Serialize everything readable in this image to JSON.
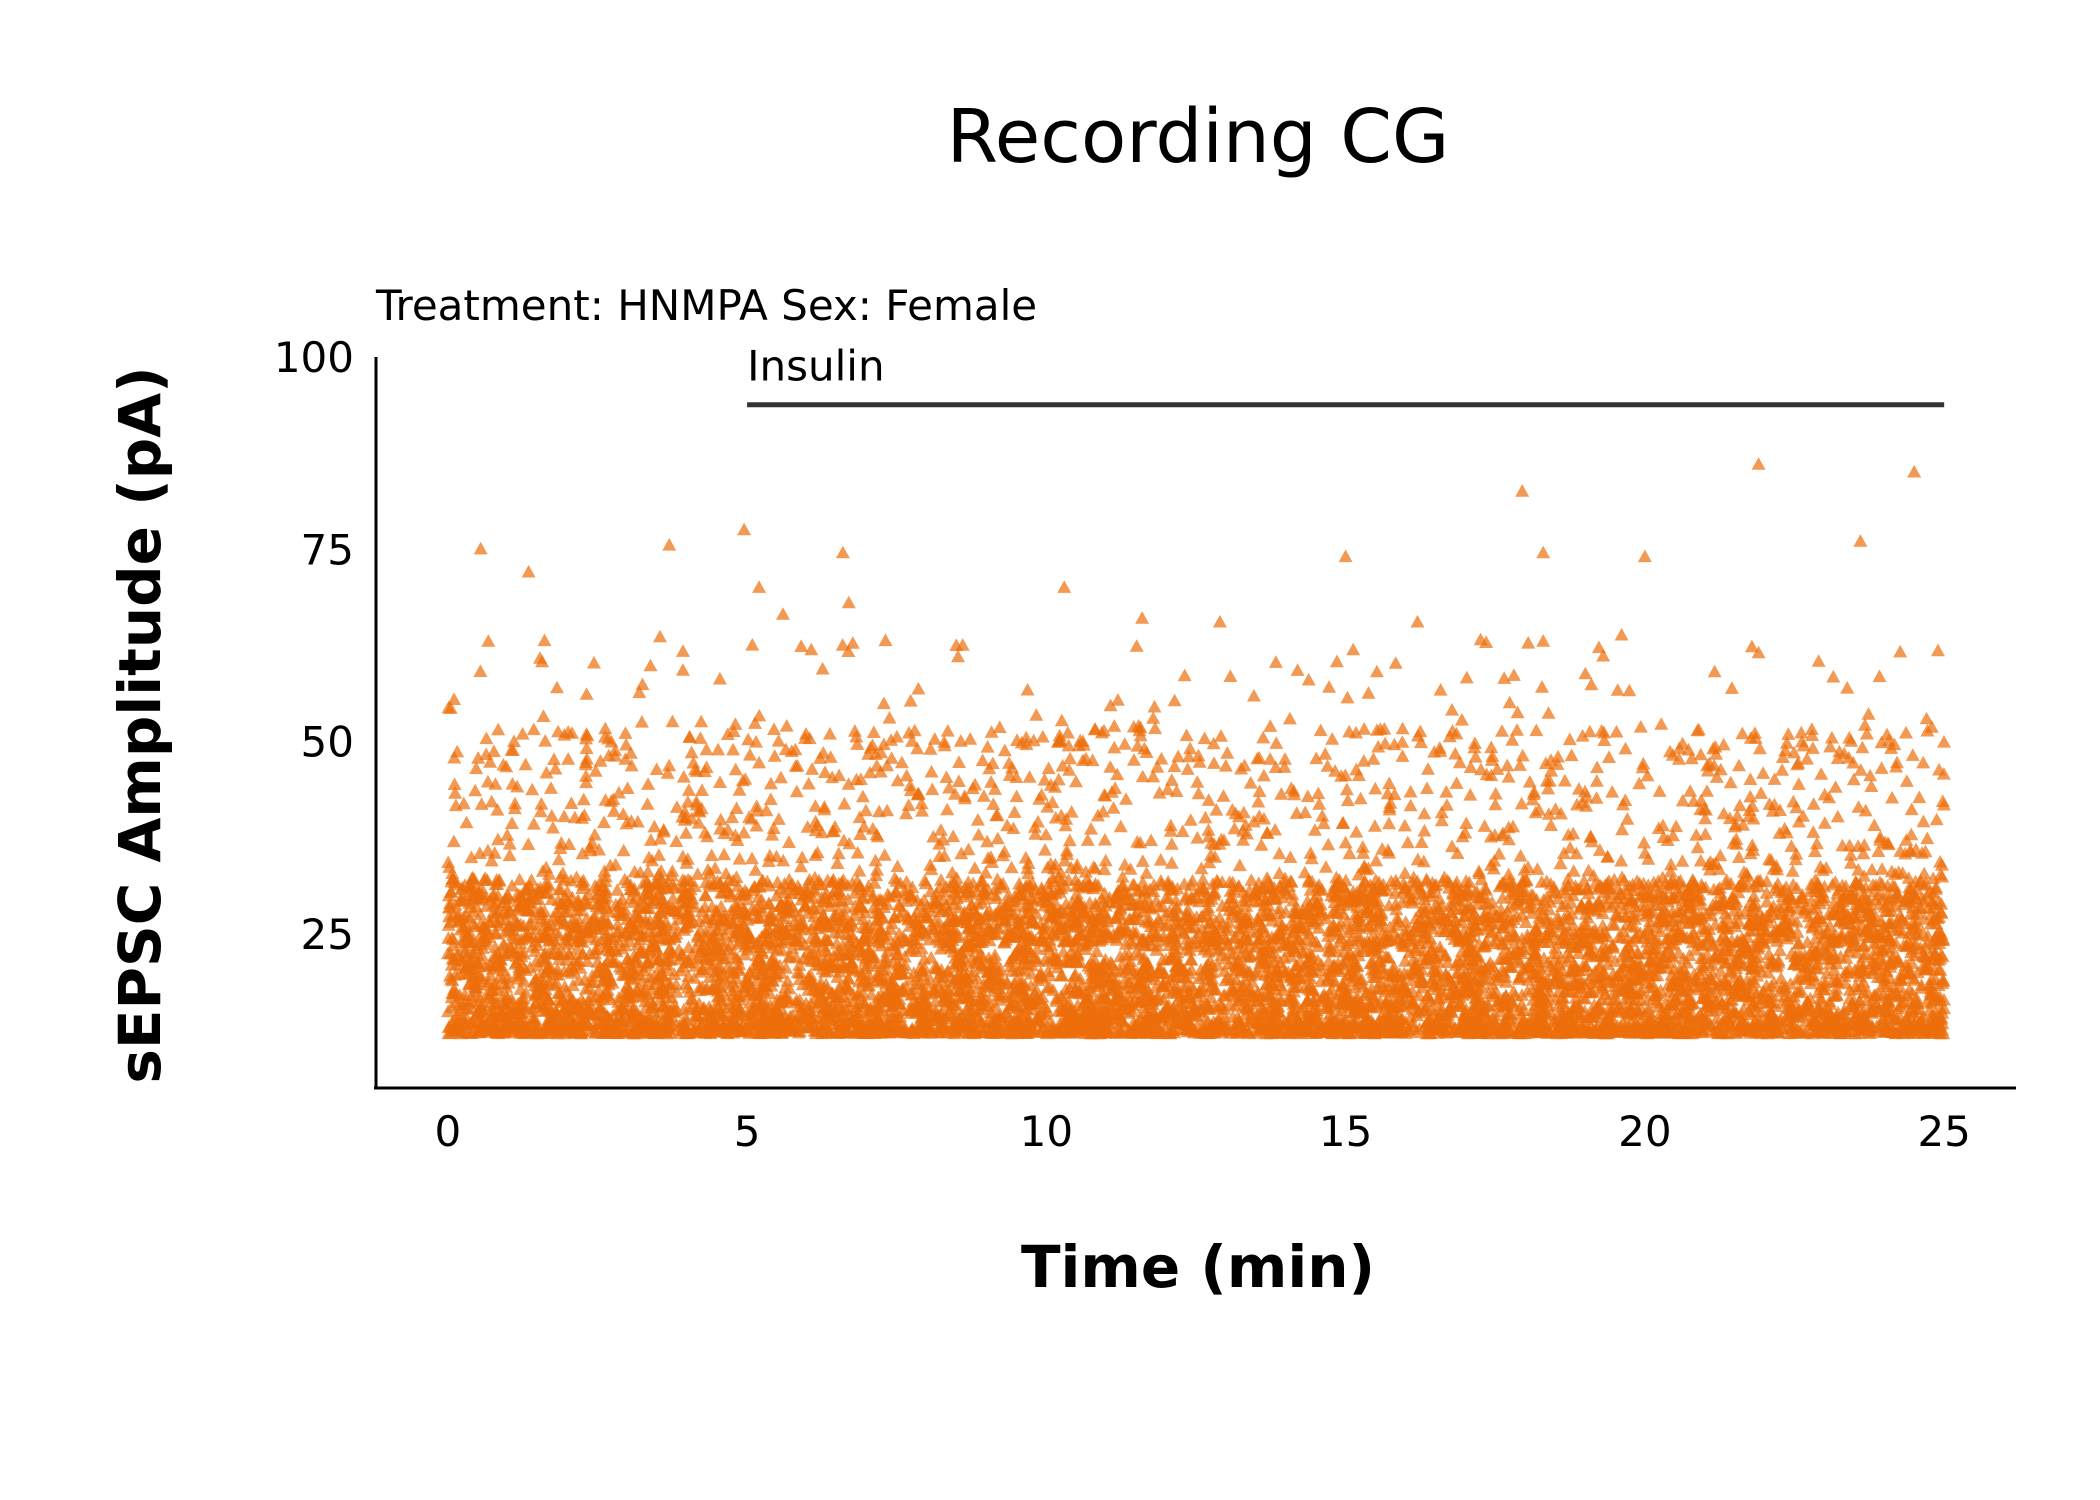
{
  "chart_data": {
    "type": "scatter",
    "title": "Recording CG",
    "subtitle": "Treatment: HNMPA  Sex: Female",
    "xlabel": "Time (min)",
    "ylabel": "sEPSC Amplitude (pA)",
    "xlim": [
      -1.2,
      26.2
    ],
    "ylim": [
      5,
      100
    ],
    "x_ticks": [
      0,
      5,
      10,
      15,
      20,
      25
    ],
    "y_ticks": [
      25,
      50,
      75,
      100
    ],
    "grid": false,
    "legend": "none",
    "marker": "triangle",
    "point_color": "#ec6e0a",
    "point_opacity": 0.7,
    "annotation": {
      "label": "Insulin",
      "x_start": 5,
      "x_end": 25
    },
    "distribution": {
      "n_points": 9000,
      "x_range": [
        0,
        25
      ],
      "amplitude_floor": 12,
      "typical_range": [
        12,
        40
      ],
      "median": 20
    },
    "outliers": [
      {
        "x": 0.55,
        "y": 75
      },
      {
        "x": 1.35,
        "y": 72
      },
      {
        "x": 3.7,
        "y": 75.5
      },
      {
        "x": 4.95,
        "y": 77.5
      },
      {
        "x": 5.2,
        "y": 70
      },
      {
        "x": 5.6,
        "y": 66.5
      },
      {
        "x": 6.6,
        "y": 74.5
      },
      {
        "x": 6.7,
        "y": 68
      },
      {
        "x": 10.3,
        "y": 70
      },
      {
        "x": 11.6,
        "y": 66
      },
      {
        "x": 12.9,
        "y": 65.5
      },
      {
        "x": 15,
        "y": 74
      },
      {
        "x": 16.2,
        "y": 65.5
      },
      {
        "x": 17.95,
        "y": 82.5
      },
      {
        "x": 18.3,
        "y": 74.5
      },
      {
        "x": 18.3,
        "y": 63
      },
      {
        "x": 20,
        "y": 74
      },
      {
        "x": 21.9,
        "y": 86
      },
      {
        "x": 21.9,
        "y": 61.5
      },
      {
        "x": 23.6,
        "y": 76
      },
      {
        "x": 24.5,
        "y": 85
      }
    ]
  }
}
